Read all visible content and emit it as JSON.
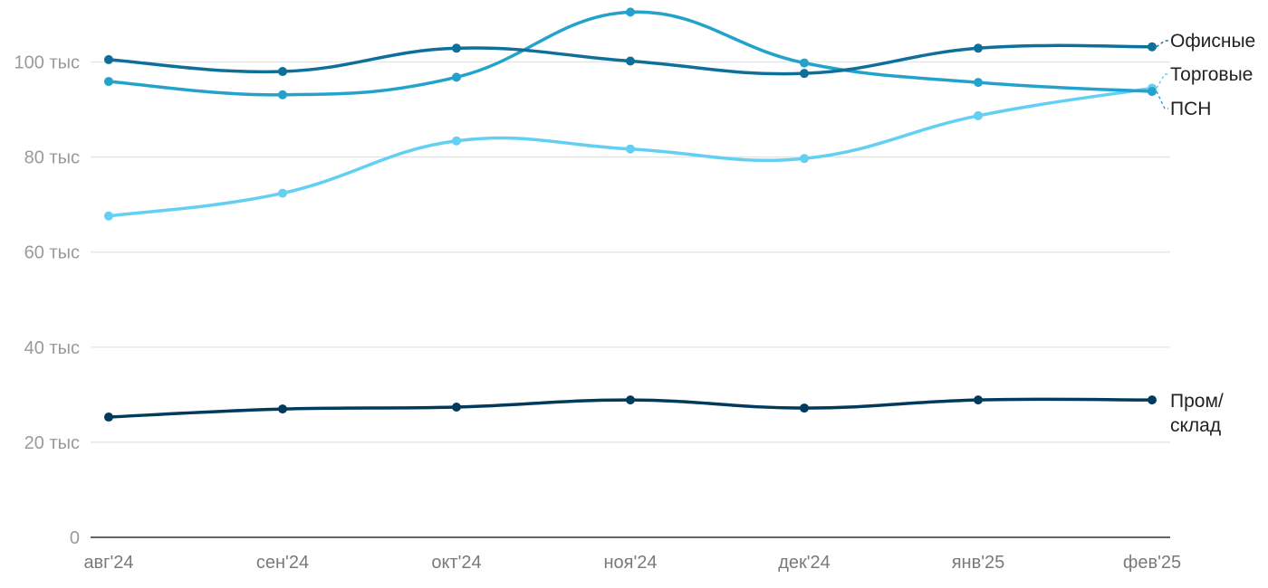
{
  "chart_data": {
    "type": "line",
    "title": "",
    "xlabel": "",
    "ylabel": "",
    "categories": [
      "авг'24",
      "сен'24",
      "окт'24",
      "ноя'24",
      "дек'24",
      "янв'25",
      "фев'25"
    ],
    "ylim": [
      0,
      110000
    ],
    "yticks": [
      {
        "value": 0,
        "label": "0"
      },
      {
        "value": 20000,
        "label": "20 тыс"
      },
      {
        "value": 40000,
        "label": "40 тыс"
      },
      {
        "value": 60000,
        "label": "60 тыс"
      },
      {
        "value": 80000,
        "label": "80 тыс"
      },
      {
        "value": 100000,
        "label": "100 тыс"
      }
    ],
    "grid": true,
    "legend": "inline-right",
    "series": [
      {
        "id": "office",
        "name": "Офисные",
        "color": "#0e6f9a",
        "values": [
          100500,
          98000,
          102900,
          100200,
          97600,
          102900,
          103200
        ]
      },
      {
        "id": "retail",
        "name": "Торговые",
        "color": "#62cff3",
        "values": [
          67600,
          72400,
          83400,
          81700,
          79700,
          88700,
          94500
        ]
      },
      {
        "id": "psn",
        "name": "ПСН",
        "color": "#23a2cc",
        "values": [
          95900,
          93100,
          96800,
          110500,
          99800,
          95700,
          93800
        ]
      },
      {
        "id": "industrial",
        "name": "Пром/\nсклад",
        "color": "#003a5c",
        "values": [
          25300,
          27000,
          27400,
          28900,
          27200,
          28900,
          28900
        ]
      }
    ]
  }
}
